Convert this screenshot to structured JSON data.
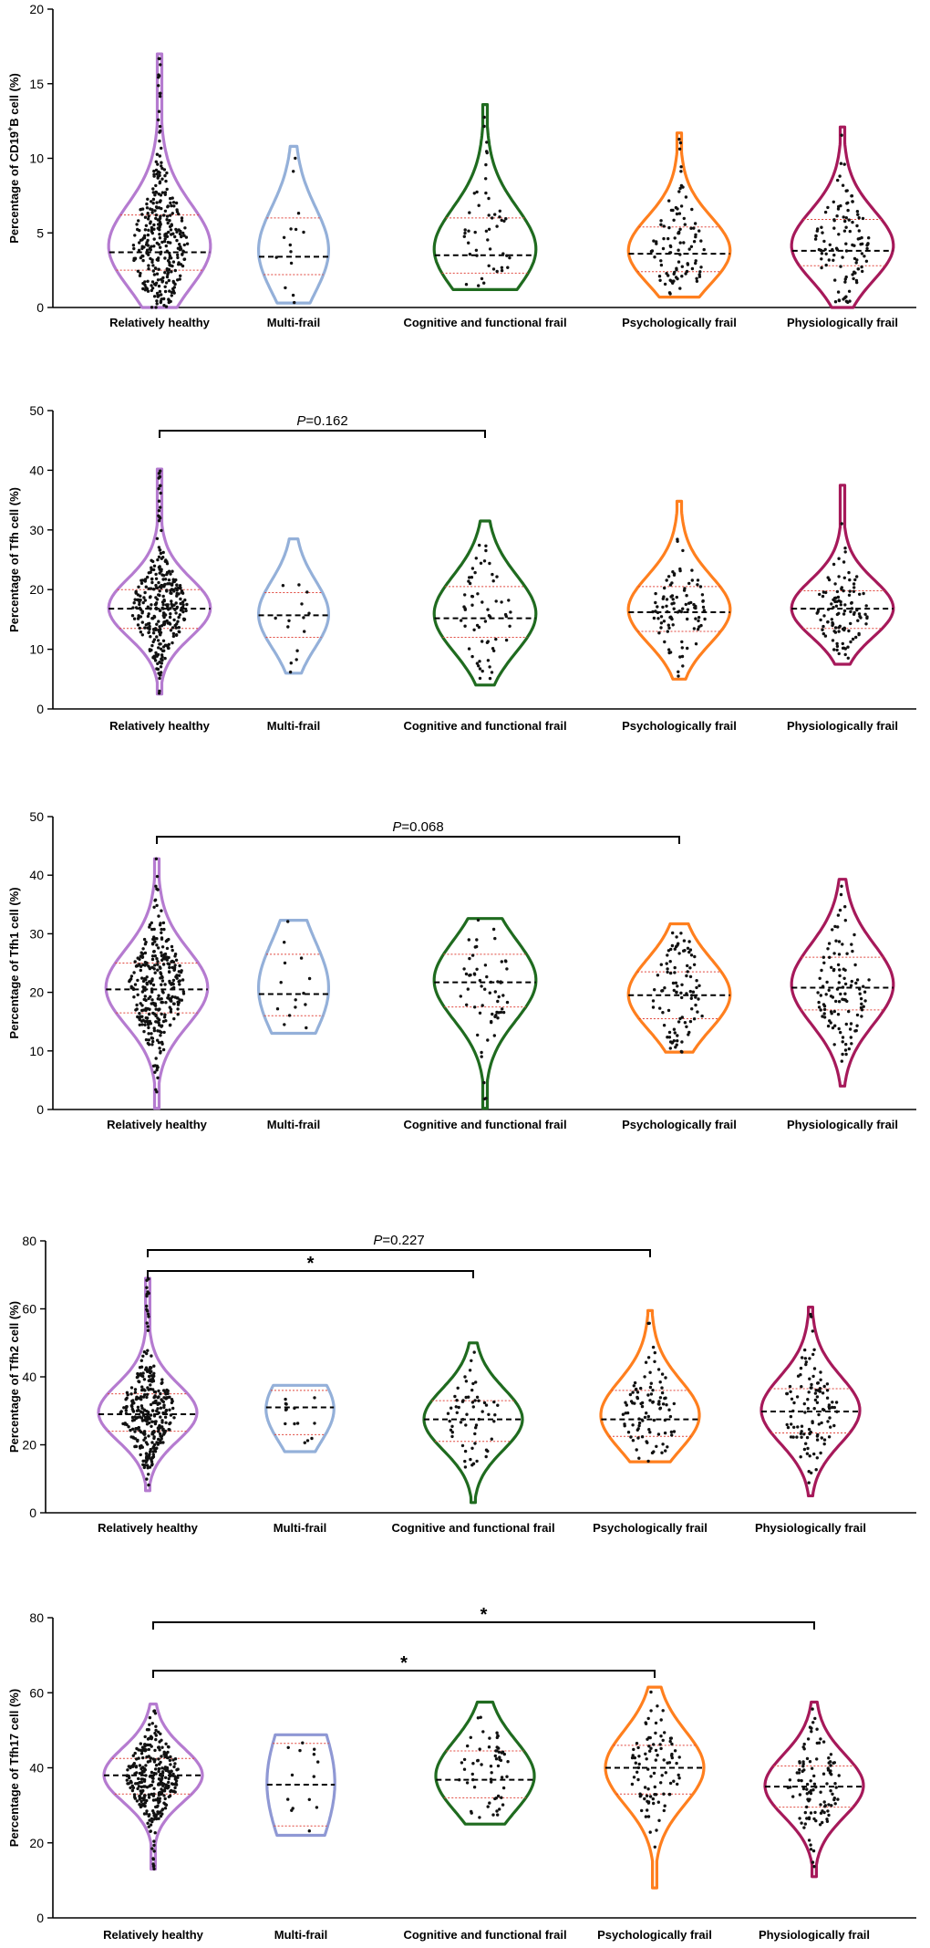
{
  "chart_data": [
    {
      "type": "violin",
      "ylabel_prefix": "Percentage of CD19",
      "ylabel_sup": "+",
      "ylabel_suffix": "B cell (%)",
      "ylim": [
        0,
        20
      ],
      "yticks": [
        "0",
        "5",
        "10",
        "15",
        "20"
      ],
      "ytick_values": [
        0,
        5,
        10,
        15,
        20
      ],
      "categories": [
        "Relatively healthy",
        "Multi-frail",
        "Cognitive and functional frail",
        "Psychologically frail",
        "Physiologically frail"
      ],
      "colors": [
        "#b57bd0",
        "#94b0d9",
        "#1f6b1f",
        "#ff7f1e",
        "#a6195a"
      ],
      "series": [
        {
          "name": "Relatively healthy",
          "min": 0,
          "q1": 2.5,
          "median": 3.7,
          "q3": 6.2,
          "max": 17.0,
          "n": 320
        },
        {
          "name": "Multi-frail",
          "min": 0.3,
          "q1": 2.2,
          "median": 3.4,
          "q3": 6.0,
          "max": 10.8,
          "n": 14
        },
        {
          "name": "Cognitive and functional frail",
          "min": 1.2,
          "q1": 2.3,
          "median": 3.5,
          "q3": 6.0,
          "max": 13.6,
          "n": 48
        },
        {
          "name": "Psychologically frail",
          "min": 0.7,
          "q1": 2.4,
          "median": 3.6,
          "q3": 5.4,
          "max": 11.7,
          "n": 95
        },
        {
          "name": "Physiologically frail",
          "min": 0,
          "q1": 2.8,
          "median": 3.8,
          "q3": 5.9,
          "max": 12.1,
          "n": 110
        }
      ],
      "annotations": []
    },
    {
      "type": "violin",
      "ylabel_prefix": "Percentage of Tfh cell (%)",
      "ylabel_sup": "",
      "ylabel_suffix": "",
      "ylim": [
        0,
        50
      ],
      "yticks": [
        "0",
        "10",
        "20",
        "30",
        "40",
        "50"
      ],
      "ytick_values": [
        0,
        10,
        20,
        30,
        40,
        50
      ],
      "categories": [
        "Relatively healthy",
        "Multi-frail",
        "Cognitive and functional frail",
        "Psychologically frail",
        "Physiologically frail"
      ],
      "colors": [
        "#b57bd0",
        "#94b0d9",
        "#1f6b1f",
        "#ff7f1e",
        "#a6195a"
      ],
      "series": [
        {
          "name": "Relatively healthy",
          "min": 2.5,
          "q1": 13.5,
          "median": 16.8,
          "q3": 20.0,
          "max": 40.2,
          "n": 320
        },
        {
          "name": "Multi-frail",
          "min": 6.0,
          "q1": 12.0,
          "median": 15.7,
          "q3": 19.5,
          "max": 28.5,
          "n": 14
        },
        {
          "name": "Cognitive and functional frail",
          "min": 4.0,
          "q1": 12.0,
          "median": 15.2,
          "q3": 20.5,
          "max": 31.5,
          "n": 60
        },
        {
          "name": "Psychologically frail",
          "min": 5.0,
          "q1": 13.0,
          "median": 16.2,
          "q3": 20.5,
          "max": 34.8,
          "n": 95
        },
        {
          "name": "Physiologically frail",
          "min": 7.5,
          "q1": 13.5,
          "median": 16.8,
          "q3": 19.8,
          "max": 37.5,
          "n": 110
        }
      ],
      "annotations": [
        {
          "label_italic": "P",
          "label_rest": "=0.162",
          "from": 0,
          "to": 2,
          "level": 1
        }
      ]
    },
    {
      "type": "violin",
      "ylabel_prefix": "Percentage of Tfh1 cell (%)",
      "ylabel_sup": "",
      "ylabel_suffix": "",
      "ylim": [
        0,
        50
      ],
      "yticks": [
        "0",
        "10",
        "20",
        "30",
        "40",
        "50"
      ],
      "ytick_values": [
        0,
        10,
        20,
        30,
        40,
        50
      ],
      "categories": [
        "Relatively healthy",
        "Multi-frail",
        "Cognitive and functional frail",
        "Psychologically frail",
        "Physiologically frail"
      ],
      "colors": [
        "#b57bd0",
        "#94b0d9",
        "#1f6b1f",
        "#ff7f1e",
        "#a6195a"
      ],
      "series": [
        {
          "name": "Relatively healthy",
          "min": 0.2,
          "q1": 16.5,
          "median": 20.5,
          "q3": 25.0,
          "max": 42.8,
          "n": 320
        },
        {
          "name": "Multi-frail",
          "min": 13.0,
          "q1": 16.0,
          "median": 19.7,
          "q3": 26.5,
          "max": 32.3,
          "n": 14
        },
        {
          "name": "Cognitive and functional frail",
          "min": 0.2,
          "q1": 17.5,
          "median": 21.7,
          "q3": 26.5,
          "max": 32.6,
          "n": 60
        },
        {
          "name": "Psychologically frail",
          "min": 9.8,
          "q1": 15.5,
          "median": 19.5,
          "q3": 23.5,
          "max": 31.7,
          "n": 95
        },
        {
          "name": "Physiologically frail",
          "min": 4.0,
          "q1": 17.0,
          "median": 20.8,
          "q3": 26.0,
          "max": 39.3,
          "n": 110
        }
      ],
      "annotations": [
        {
          "label_italic": "P",
          "label_rest": "=0.068",
          "from": 0,
          "to": 3,
          "level": 1
        }
      ]
    },
    {
      "type": "violin",
      "ylabel_prefix": "Percentage of Tfh2 cell (%)",
      "ylabel_sup": "",
      "ylabel_suffix": "",
      "ylim": [
        0,
        80
      ],
      "yticks": [
        "0",
        "20",
        "40",
        "60",
        "80"
      ],
      "ytick_values": [
        0,
        20,
        40,
        60,
        80
      ],
      "categories": [
        "Relatively healthy",
        "Multi-frail",
        "Cognitive and functional frail",
        "Psychologically frail",
        "Physiologically frail"
      ],
      "colors": [
        "#b57bd0",
        "#94b0d9",
        "#1f6b1f",
        "#ff7f1e",
        "#a6195a"
      ],
      "series": [
        {
          "name": "Relatively healthy",
          "min": 6.5,
          "q1": 24.0,
          "median": 29.0,
          "q3": 35.0,
          "max": 69.0,
          "n": 320
        },
        {
          "name": "Multi-frail",
          "min": 18.0,
          "q1": 23.0,
          "median": 31.0,
          "q3": 36.0,
          "max": 37.5,
          "n": 14
        },
        {
          "name": "Cognitive and functional frail",
          "min": 3.0,
          "q1": 21.0,
          "median": 27.5,
          "q3": 33.0,
          "max": 50.0,
          "n": 60
        },
        {
          "name": "Psychologically frail",
          "min": 15.0,
          "q1": 22.5,
          "median": 27.5,
          "q3": 36.0,
          "max": 59.5,
          "n": 95
        },
        {
          "name": "Physiologically frail",
          "min": 5.0,
          "q1": 23.5,
          "median": 29.8,
          "q3": 36.5,
          "max": 60.5,
          "n": 110
        }
      ],
      "annotations": [
        {
          "label_italic": "P",
          "label_rest": "=0.227",
          "from": 0,
          "to": 3,
          "level": 2
        },
        {
          "label_italic": "",
          "label_rest": "*",
          "from": 0,
          "to": 2,
          "level": 1
        }
      ]
    },
    {
      "type": "violin",
      "ylabel_prefix": "Percentage of Tfh17 cell (%)",
      "ylabel_sup": "",
      "ylabel_suffix": "",
      "ylim": [
        0,
        80
      ],
      "yticks": [
        "0",
        "20",
        "40",
        "60",
        "80"
      ],
      "ytick_values": [
        0,
        20,
        40,
        60,
        80
      ],
      "categories": [
        "Relatively healthy",
        "Multi-frail",
        "Cognitive and functional frail",
        "Psychologically frail",
        "Physiologically frail"
      ],
      "colors": [
        "#b57bd0",
        "#8f98d4",
        "#1f6b1f",
        "#ff7f1e",
        "#a6195a"
      ],
      "series": [
        {
          "name": "Relatively healthy",
          "min": 13.0,
          "q1": 33.0,
          "median": 38.0,
          "q3": 42.5,
          "max": 57.0,
          "n": 320
        },
        {
          "name": "Multi-frail",
          "min": 22.0,
          "q1": 24.5,
          "median": 35.5,
          "q3": 46.5,
          "max": 48.8,
          "n": 14
        },
        {
          "name": "Cognitive and functional frail",
          "min": 25.0,
          "q1": 32.0,
          "median": 36.8,
          "q3": 44.5,
          "max": 57.5,
          "n": 60
        },
        {
          "name": "Psychologically frail",
          "min": 8.0,
          "q1": 33.0,
          "median": 40.0,
          "q3": 46.0,
          "max": 61.5,
          "n": 95
        },
        {
          "name": "Physiologically frail",
          "min": 11.0,
          "q1": 29.5,
          "median": 35.0,
          "q3": 40.5,
          "max": 57.5,
          "n": 110
        }
      ],
      "annotations": [
        {
          "label_italic": "",
          "label_rest": "*",
          "from": 0,
          "to": 4,
          "level": 2
        },
        {
          "label_italic": "",
          "label_rest": "*",
          "from": 0,
          "to": 3,
          "level": 1
        }
      ]
    }
  ]
}
